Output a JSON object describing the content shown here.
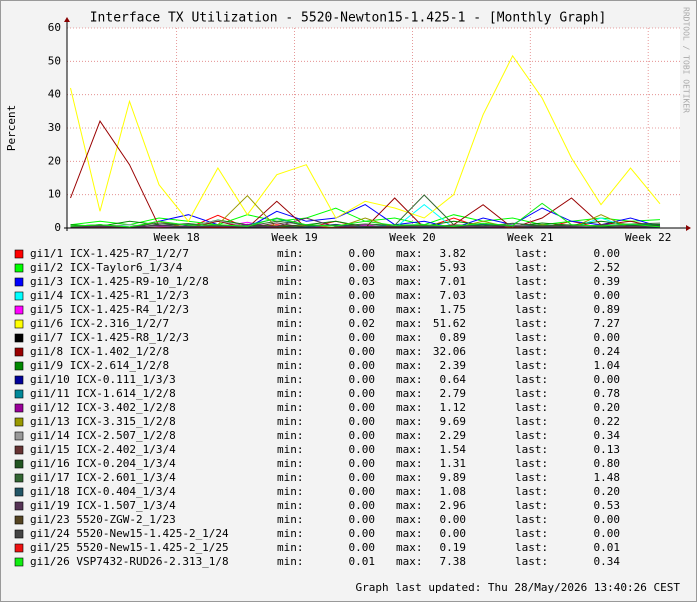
{
  "chart_data": {
    "type": "line",
    "title": "Interface TX Utilization - 5520-Newton15-1.425-1 - [Monthly Graph]",
    "ylabel": "Percent",
    "watermark": "RRDTOOL / TOBI OETIKER",
    "footer": "Graph last updated: Thu 28/May/2026 13:40:26 CEST",
    "ylim": [
      0,
      60
    ],
    "yticks": [
      0,
      10,
      20,
      30,
      40,
      50,
      60
    ],
    "xlim": [
      17.07,
      22.27
    ],
    "xticks": [
      {
        "value": 18,
        "label": "Week 18"
      },
      {
        "value": 19,
        "label": "Week 19"
      },
      {
        "value": 20,
        "label": "Week 20"
      },
      {
        "value": 21,
        "label": "Week 21"
      },
      {
        "value": 22,
        "label": "Week 22"
      }
    ],
    "grid": true,
    "stat_labels": [
      "min:",
      "max:",
      "last:"
    ],
    "x": [
      17.1,
      17.35,
      17.6,
      17.85,
      18.1,
      18.35,
      18.6,
      18.85,
      19.1,
      19.35,
      19.6,
      19.85,
      20.1,
      20.35,
      20.6,
      20.85,
      21.1,
      21.35,
      21.6,
      21.85,
      22.1
    ],
    "series": [
      {
        "name": "gi1/1 ICX-1.425-R7_1/2/7",
        "color": "#ff0000",
        "min": "0.00",
        "max": "3.82",
        "last": "0.00",
        "values": [
          0,
          1,
          0,
          2,
          0,
          3.82,
          0,
          1,
          0,
          2,
          0,
          1,
          0,
          3,
          0,
          1,
          0,
          2,
          0,
          1,
          0
        ]
      },
      {
        "name": "gi1/2 ICX-Taylor6_1/3/4",
        "color": "#00ff00",
        "min": "0.00",
        "max": "5.93",
        "last": "2.52",
        "values": [
          1,
          2,
          1,
          3,
          2,
          1,
          4,
          2,
          3,
          5.93,
          2,
          3,
          1,
          4,
          2,
          3,
          1,
          2,
          3,
          2,
          2.52
        ]
      },
      {
        "name": "gi1/3 ICX-1.425-R9-10_1/2/8",
        "color": "#0000ff",
        "min": "0.03",
        "max": "7.01",
        "last": "0.39",
        "values": [
          0,
          1,
          0,
          2,
          4,
          1,
          0,
          5,
          2,
          3,
          7.01,
          1,
          2,
          0,
          3,
          1,
          6,
          2,
          1,
          3,
          0.39
        ]
      },
      {
        "name": "gi1/4 ICX-1.425-R1_1/2/3",
        "color": "#00ffff",
        "min": "0.00",
        "max": "7.03",
        "last": "0.00",
        "values": [
          0,
          0,
          1,
          0,
          0,
          2,
          0,
          0,
          1,
          0,
          0,
          0,
          7.03,
          0,
          0,
          1,
          0,
          0,
          3,
          0,
          0
        ]
      },
      {
        "name": "gi1/5 ICX-1.425-R4_1/2/3",
        "color": "#ff00ff",
        "min": "0.00",
        "max": "1.75",
        "last": "0.89",
        "values": [
          0,
          0.5,
          0,
          1,
          0,
          0.3,
          1.75,
          0,
          0.5,
          0,
          1,
          0,
          0.2,
          0,
          1,
          0,
          0.5,
          0,
          1,
          0,
          0.89
        ]
      },
      {
        "name": "gi1/6 ICX-2.316_1/2/7",
        "color": "#ffff00",
        "min": "0.02",
        "max": "51.62",
        "last": "7.27",
        "values": [
          42,
          5,
          38,
          13,
          2,
          18,
          4,
          16,
          19,
          3,
          8,
          6,
          3,
          10,
          34,
          51.62,
          39,
          21,
          7,
          18,
          7.27
        ]
      },
      {
        "name": "gi1/7 ICX-1.425-R8_1/2/3",
        "color": "#000000",
        "min": "0.00",
        "max": "0.89",
        "last": "0.00",
        "values": [
          0,
          0.2,
          0,
          0.5,
          0,
          0.89,
          0,
          0.3,
          0,
          0.1,
          0,
          0.4,
          0,
          0.2,
          0,
          0.6,
          0,
          0.1,
          0,
          0.3,
          0
        ]
      },
      {
        "name": "gi1/8 ICX-1.402_1/2/8",
        "color": "#990000",
        "min": "0.00",
        "max": "32.06",
        "last": "0.24",
        "values": [
          9,
          32.06,
          19,
          0.5,
          0,
          2,
          0,
          8,
          0,
          1,
          0,
          9,
          0,
          1,
          7,
          0,
          3,
          9,
          1,
          2,
          0.24
        ]
      },
      {
        "name": "gi1/9 ICX-2.614_1/2/8",
        "color": "#008800",
        "min": "0.00",
        "max": "2.39",
        "last": "1.04",
        "values": [
          1,
          0.5,
          2,
          1,
          0.3,
          2.39,
          1,
          0.5,
          1,
          2,
          0.4,
          1,
          0.6,
          2,
          1,
          0.5,
          1.5,
          0.8,
          2,
          1,
          1.04
        ]
      },
      {
        "name": "gi1/10 ICX-0.111_1/3/3",
        "color": "#000099",
        "min": "0.00",
        "max": "0.64",
        "last": "0.00",
        "values": [
          0,
          0.2,
          0,
          0.1,
          0.64,
          0,
          0.2,
          0,
          0.1,
          0,
          0.3,
          0,
          0.1,
          0,
          0.2,
          0,
          0.4,
          0,
          0.1,
          0,
          0
        ]
      },
      {
        "name": "gi1/11 ICX-1.614_1/2/8",
        "color": "#008899",
        "min": "0.00",
        "max": "2.79",
        "last": "0.78",
        "values": [
          0.5,
          1,
          0.3,
          0.8,
          1.2,
          0.4,
          1,
          2.79,
          0.6,
          1,
          0.3,
          0.9,
          1,
          0.5,
          1.1,
          0.7,
          1,
          0.4,
          0.9,
          1,
          0.78
        ]
      },
      {
        "name": "gi1/12 ICX-3.402_1/2/8",
        "color": "#990099",
        "min": "0.00",
        "max": "1.12",
        "last": "0.20",
        "values": [
          0.1,
          0.3,
          0,
          0.5,
          0.2,
          0,
          1.12,
          0.1,
          0.3,
          0,
          0.2,
          0.4,
          0,
          0.1,
          0.3,
          0,
          0.5,
          0.1,
          0,
          0.3,
          0.2
        ]
      },
      {
        "name": "gi1/13 ICX-3.315_1/2/8",
        "color": "#999900",
        "min": "0.00",
        "max": "9.69",
        "last": "0.22",
        "values": [
          0,
          1,
          0,
          2,
          0,
          1,
          9.69,
          0,
          1,
          0,
          3,
          0,
          1,
          0,
          2,
          0,
          1,
          0,
          4,
          0,
          0.22
        ]
      },
      {
        "name": "gi1/14 ICX-2.507_1/2/8",
        "color": "#999999",
        "min": "0.00",
        "max": "2.29",
        "last": "0.34",
        "values": [
          0.3,
          0.5,
          1,
          0.2,
          0.4,
          2.29,
          0.3,
          0.5,
          0.2,
          1,
          0.4,
          0.3,
          0.6,
          0.2,
          0.5,
          1,
          0.3,
          0.4,
          0.2,
          0.5,
          0.34
        ]
      },
      {
        "name": "gi1/15 ICX-2.402_1/3/4",
        "color": "#663333",
        "min": "0.00",
        "max": "1.54",
        "last": "0.13",
        "values": [
          0,
          0.3,
          0.1,
          0,
          0.5,
          0.2,
          0,
          1.54,
          0.1,
          0,
          0.3,
          0.2,
          0,
          0.4,
          0.1,
          0,
          0.2,
          0.3,
          0,
          0.1,
          0.13
        ]
      },
      {
        "name": "gi1/16 ICX-0.204_1/3/4",
        "color": "#225522",
        "min": "0.00",
        "max": "1.31",
        "last": "0.80",
        "values": [
          0.4,
          0.6,
          0.3,
          0.8,
          1.31,
          0.5,
          0.7,
          0.4,
          0.6,
          0.8,
          0.3,
          0.5,
          0.7,
          0.4,
          0.9,
          0.5,
          0.6,
          0.8,
          0.4,
          0.7,
          0.8
        ]
      },
      {
        "name": "gi1/17 ICX-2.601_1/3/4",
        "color": "#336633",
        "min": "0.00",
        "max": "9.89",
        "last": "1.48",
        "values": [
          0.5,
          1,
          0.3,
          1.5,
          0.8,
          1,
          0.5,
          2,
          1,
          0.6,
          1.2,
          0.8,
          9.89,
          1,
          0.5,
          1.4,
          0.7,
          1,
          0.6,
          1.2,
          1.48
        ]
      },
      {
        "name": "gi1/18 ICX-0.404_1/3/4",
        "color": "#225566",
        "min": "0.00",
        "max": "1.08",
        "last": "0.20",
        "values": [
          0.1,
          0.3,
          0.2,
          0,
          0.4,
          0.1,
          0.3,
          0,
          0.2,
          1.08,
          0.1,
          0,
          0.3,
          0.2,
          0.1,
          0,
          0.4,
          0.2,
          0.1,
          0.3,
          0.2
        ]
      },
      {
        "name": "gi1/19 ICX-1.507_1/3/4",
        "color": "#553355",
        "min": "0.00",
        "max": "2.96",
        "last": "0.53",
        "values": [
          0.3,
          0.5,
          0.2,
          0.8,
          0.4,
          0.6,
          0.3,
          0.5,
          2.96,
          0.4,
          0.6,
          0.3,
          0.5,
          0.7,
          0.4,
          0.6,
          0.3,
          0.5,
          0.8,
          0.4,
          0.53
        ]
      },
      {
        "name": "gi1/23 5520-ZGW-2_1/23",
        "color": "#554422",
        "min": "0.00",
        "max": "0.00",
        "last": "0.00",
        "values": [
          0,
          0,
          0,
          0,
          0,
          0,
          0,
          0,
          0,
          0,
          0,
          0,
          0,
          0,
          0,
          0,
          0,
          0,
          0,
          0,
          0
        ]
      },
      {
        "name": "gi1/24 5520-New15-1.425-2_1/24",
        "color": "#444444",
        "min": "0.00",
        "max": "0.00",
        "last": "0.00",
        "values": [
          0,
          0,
          0,
          0,
          0,
          0,
          0,
          0,
          0,
          0,
          0,
          0,
          0,
          0,
          0,
          0,
          0,
          0,
          0,
          0,
          0
        ]
      },
      {
        "name": "gi1/25 5520-New15-1.425-2_1/25",
        "color": "#ee1111",
        "min": "0.00",
        "max": "0.19",
        "last": "0.01",
        "values": [
          0,
          0.05,
          0,
          0.1,
          0,
          0.19,
          0,
          0.05,
          0,
          0.1,
          0,
          0.02,
          0,
          0.08,
          0,
          0.1,
          0,
          0.03,
          0,
          0.05,
          0.01
        ]
      },
      {
        "name": "gi1/26 VSP7432-RUD26-2.313_1/8",
        "color": "#11ee11",
        "min": "0.01",
        "max": "7.38",
        "last": "0.34",
        "values": [
          0.5,
          1,
          0.3,
          2,
          0.8,
          1,
          0.5,
          3,
          1,
          0.6,
          2,
          0.8,
          1,
          0.5,
          1.4,
          0.7,
          7.38,
          1,
          0.6,
          1.2,
          0.34
        ]
      }
    ]
  }
}
